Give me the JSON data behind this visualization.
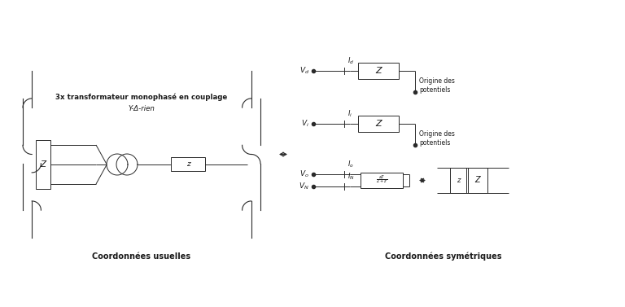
{
  "bg_color": "#ffffff",
  "line_color": "#2a2a2a",
  "text_color": "#1a1a1a",
  "title_line1": "3x transformateur monophasé en couplage",
  "title_line2": "Y-Δ-rien",
  "label_left": "Coordonnées usuelles",
  "label_right": "Coordonnées symétriques",
  "origine_des_potentiels": "Origine des\npotentiels"
}
